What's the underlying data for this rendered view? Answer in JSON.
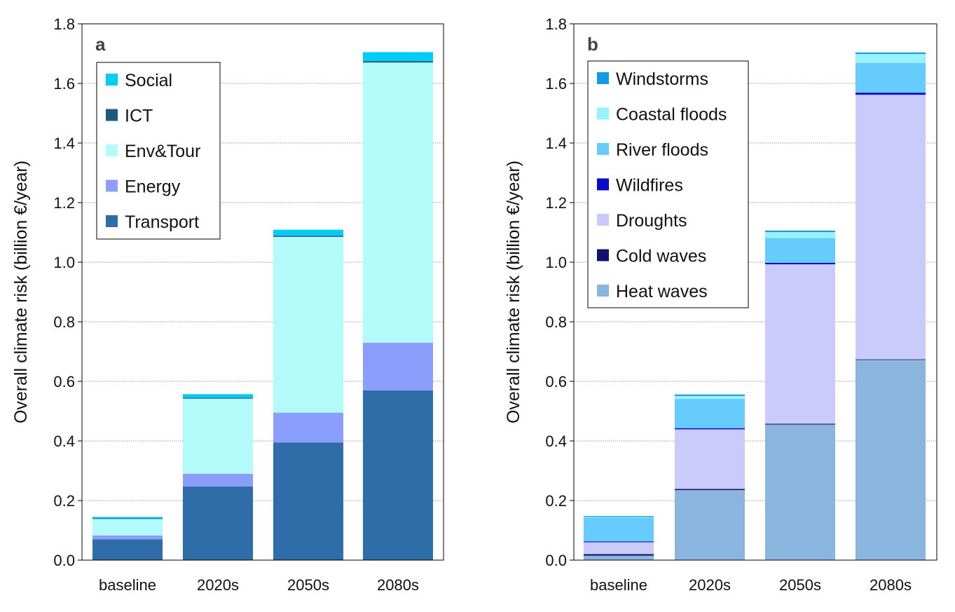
{
  "chart_data": [
    {
      "type": "bar",
      "stacked": true,
      "panel_label": "a",
      "categories": [
        "baseline",
        "2020s",
        "2050s",
        "2080s"
      ],
      "ylabel": "Overall climate risk (billion €/year)",
      "ylim": [
        0,
        1.8
      ],
      "yticks": [
        "0.0",
        "0.2",
        "0.4",
        "0.6",
        "0.8",
        "1.0",
        "1.2",
        "1.4",
        "1.6",
        "1.8"
      ],
      "grid": true,
      "legend_position": "top-left",
      "series": [
        {
          "name": "Transport",
          "color": "#2e6da7",
          "values": [
            0.07,
            0.247,
            0.395,
            0.57
          ]
        },
        {
          "name": "Energy",
          "color": "#8c9efc",
          "values": [
            0.013,
            0.043,
            0.1,
            0.16
          ]
        },
        {
          "name": "Env&Tour",
          "color": "#b3fbfb",
          "values": [
            0.055,
            0.252,
            0.59,
            0.94
          ]
        },
        {
          "name": "ICT",
          "color": "#1c5a7e",
          "values": [
            0.002,
            0.003,
            0.004,
            0.005
          ]
        },
        {
          "name": "Social",
          "color": "#00ccf5",
          "values": [
            0.005,
            0.012,
            0.02,
            0.03
          ]
        }
      ]
    },
    {
      "type": "bar",
      "stacked": true,
      "panel_label": "b",
      "categories": [
        "baseline",
        "2020s",
        "2050s",
        "2080s"
      ],
      "ylabel": "Overall climate risk (billion €/year)",
      "ylim": [
        0,
        1.8
      ],
      "yticks": [
        "0.0",
        "0.2",
        "0.4",
        "0.6",
        "0.8",
        "1.0",
        "1.2",
        "1.4",
        "1.6",
        "1.8"
      ],
      "grid": true,
      "legend_position": "top-left",
      "series": [
        {
          "name": "Heat waves",
          "color": "#89b5df",
          "values": [
            0.015,
            0.235,
            0.455,
            0.672
          ]
        },
        {
          "name": "Cold waves",
          "color": "#12126e",
          "values": [
            0.005,
            0.004,
            0.003,
            0.002
          ]
        },
        {
          "name": "Droughts",
          "color": "#cbcbfb",
          "values": [
            0.04,
            0.2,
            0.535,
            0.888
          ]
        },
        {
          "name": "Wildfires",
          "color": "#0a0ac8",
          "values": [
            0.003,
            0.004,
            0.005,
            0.007
          ]
        },
        {
          "name": "River floods",
          "color": "#66ccfd",
          "values": [
            0.08,
            0.098,
            0.083,
            0.1
          ]
        },
        {
          "name": "Coastal floods",
          "color": "#99f2fa",
          "values": [
            0.002,
            0.01,
            0.02,
            0.03
          ]
        },
        {
          "name": "Windstorms",
          "color": "#1499e3",
          "values": [
            0.003,
            0.005,
            0.005,
            0.005
          ]
        }
      ]
    }
  ]
}
